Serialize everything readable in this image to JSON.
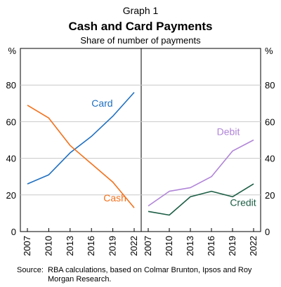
{
  "header": {
    "graph_number": "Graph 1",
    "title": "Cash and Card Payments",
    "subtitle": "Share of number of payments"
  },
  "source_label": "Source:",
  "source_lines": [
    "RBA calculations, based on Colmar Brunton, Ipsos and Roy",
    "Morgan Research."
  ],
  "colors": {
    "card": "#1f6fc0",
    "cash": "#f2711c",
    "debit": "#b084d8",
    "credit": "#1c5e45",
    "grid": "#c8c8c8",
    "axis": "#000000"
  },
  "chart_data": [
    {
      "type": "line",
      "ylabel": "%",
      "ylim": [
        0,
        100
      ],
      "yticks": [
        0,
        20,
        40,
        60,
        80
      ],
      "x": [
        "2007",
        "2010",
        "2013",
        "2016",
        "2019",
        "2022"
      ],
      "grid": true,
      "series": [
        {
          "name": "Card",
          "color_key": "card",
          "values": [
            26,
            31,
            43,
            52,
            63,
            76
          ]
        },
        {
          "name": "Cash",
          "color_key": "cash",
          "values": [
            69,
            62,
            47,
            37,
            27,
            13
          ]
        }
      ]
    },
    {
      "type": "line",
      "ylabel": "%",
      "ylim": [
        0,
        100
      ],
      "yticks": [
        0,
        20,
        40,
        60,
        80
      ],
      "x": [
        "2007",
        "2010",
        "2013",
        "2016",
        "2019",
        "2022"
      ],
      "grid": true,
      "series": [
        {
          "name": "Debit",
          "color_key": "debit",
          "values": [
            14,
            22,
            24,
            30,
            44,
            50
          ]
        },
        {
          "name": "Credit",
          "color_key": "credit",
          "values": [
            11,
            9,
            19,
            22,
            19,
            26
          ]
        }
      ]
    }
  ]
}
